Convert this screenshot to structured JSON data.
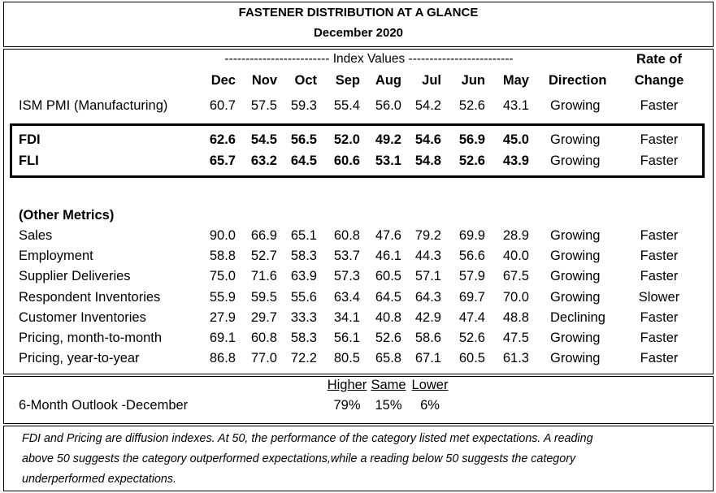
{
  "title": "FASTENER DISTRIBUTION AT A GLANCE",
  "subtitle": "December 2020",
  "index_values_label": "------------------------- Index Values -------------------------",
  "rate_of_label": "Rate of",
  "columns": [
    "Dec",
    "Nov",
    "Oct",
    "Sep",
    "Aug",
    "Jul",
    "Jun",
    "May"
  ],
  "direction_header": "Direction",
  "change_header": "Change",
  "ism": {
    "label": "ISM PMI (Manufacturing)",
    "values": [
      "60.7",
      "57.5",
      "59.3",
      "55.4",
      "56.0",
      "54.2",
      "52.6",
      "43.1"
    ],
    "direction": "Growing",
    "rate": "Faster"
  },
  "highlight_rows": [
    {
      "label": "FDI",
      "values": [
        "62.6",
        "54.5",
        "56.5",
        "52.0",
        "49.2",
        "54.6",
        "56.9",
        "45.0"
      ],
      "direction": "Growing",
      "rate": "Faster"
    },
    {
      "label": "FLI",
      "values": [
        "65.7",
        "63.2",
        "64.5",
        "60.6",
        "53.1",
        "54.8",
        "52.6",
        "43.9"
      ],
      "direction": "Growing",
      "rate": "Faster"
    }
  ],
  "other_metrics_label": "(Other Metrics)",
  "metrics": [
    {
      "label": "Sales",
      "values": [
        "90.0",
        "66.9",
        "65.1",
        "60.8",
        "47.6",
        "79.2",
        "69.9",
        "28.9"
      ],
      "direction": "Growing",
      "rate": "Faster"
    },
    {
      "label": "Employment",
      "values": [
        "58.8",
        "52.7",
        "58.3",
        "53.7",
        "46.1",
        "44.3",
        "56.6",
        "40.0"
      ],
      "direction": "Growing",
      "rate": "Faster"
    },
    {
      "label": "Supplier Deliveries",
      "values": [
        "75.0",
        "71.6",
        "63.9",
        "57.3",
        "60.5",
        "57.1",
        "57.9",
        "67.5"
      ],
      "direction": "Growing",
      "rate": "Faster"
    },
    {
      "label": "Respondent Inventories",
      "values": [
        "55.9",
        "59.5",
        "55.6",
        "63.4",
        "64.5",
        "64.3",
        "69.7",
        "70.0"
      ],
      "direction": "Growing",
      "rate": "Slower"
    },
    {
      "label": "Customer Inventories",
      "values": [
        "27.9",
        "29.7",
        "33.3",
        "34.1",
        "40.8",
        "42.9",
        "47.4",
        "48.8"
      ],
      "direction": "Declining",
      "rate": "Faster"
    },
    {
      "label": "Pricing, month-to-month",
      "values": [
        "69.1",
        "60.8",
        "58.3",
        "56.1",
        "52.6",
        "58.6",
        "52.6",
        "47.5"
      ],
      "direction": "Growing",
      "rate": "Faster"
    },
    {
      "label": "Pricing, year-to-year",
      "values": [
        "86.8",
        "77.0",
        "72.2",
        "80.5",
        "65.8",
        "67.1",
        "60.5",
        "61.3"
      ],
      "direction": "Growing",
      "rate": "Faster"
    }
  ],
  "outlook": {
    "label": "6-Month Outlook -December",
    "headers": [
      "Higher",
      "Same",
      "Lower"
    ],
    "values": [
      "79%",
      "15%",
      "6%"
    ]
  },
  "note_lines": [
    "FDI and Pricing are diffusion indexes.  At 50, the performance of the category listed met expectations. A reading",
    "above 50 suggests the category outperformed expectations,while a reading below 50 suggests the category",
    "underperformed expectations."
  ]
}
